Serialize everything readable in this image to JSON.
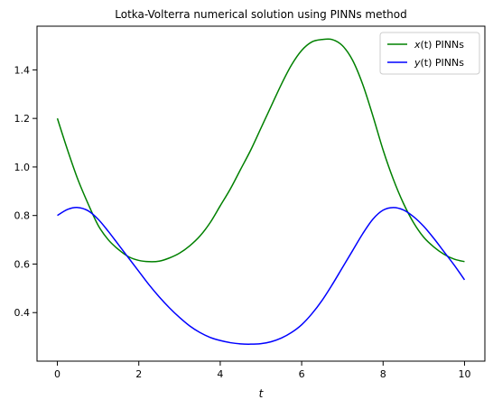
{
  "chart_data": {
    "type": "line",
    "title": "Lotka-Volterra numerical solution using PINNs method",
    "xlabel": "t",
    "ylabel": "",
    "xlim": [
      -0.5,
      10.5
    ],
    "ylim": [
      0.2,
      1.58
    ],
    "xticks": [
      0,
      2,
      4,
      6,
      8,
      10
    ],
    "yticks": [
      0.4,
      0.6,
      0.8,
      1.0,
      1.2,
      1.4
    ],
    "ytick_labels": [
      "0.4",
      "0.6",
      "0.8",
      "1.0",
      "1.2",
      "1.4"
    ],
    "grid": false,
    "legend_position": "top-right",
    "series": [
      {
        "name": "x(t) PINNs",
        "legend_var": "x",
        "legend_rest": "(t) PINNs",
        "color": "#008000",
        "x": [
          0,
          0.25,
          0.5,
          0.75,
          1.0,
          1.25,
          1.5,
          1.75,
          2.0,
          2.25,
          2.5,
          2.75,
          3.0,
          3.25,
          3.5,
          3.75,
          4.0,
          4.25,
          4.5,
          4.75,
          5.0,
          5.25,
          5.5,
          5.75,
          6.0,
          6.25,
          6.5,
          6.75,
          7.0,
          7.25,
          7.5,
          7.75,
          8.0,
          8.25,
          8.5,
          8.75,
          9.0,
          9.25,
          9.5,
          9.75,
          10.0
        ],
        "y": [
          1.2,
          1.07,
          0.95,
          0.85,
          0.76,
          0.7,
          0.66,
          0.63,
          0.615,
          0.61,
          0.612,
          0.625,
          0.645,
          0.675,
          0.715,
          0.77,
          0.84,
          0.91,
          0.99,
          1.07,
          1.16,
          1.25,
          1.34,
          1.42,
          1.48,
          1.515,
          1.525,
          1.525,
          1.5,
          1.44,
          1.34,
          1.21,
          1.07,
          0.95,
          0.85,
          0.77,
          0.71,
          0.67,
          0.64,
          0.62,
          0.61
        ]
      },
      {
        "name": "y(t) PINNs",
        "legend_var": "y",
        "legend_rest": "(t) PINNs",
        "color": "#0000ff",
        "x": [
          0,
          0.25,
          0.5,
          0.75,
          1.0,
          1.25,
          1.5,
          1.75,
          2.0,
          2.25,
          2.5,
          2.75,
          3.0,
          3.25,
          3.5,
          3.75,
          4.0,
          4.25,
          4.5,
          4.75,
          5.0,
          5.25,
          5.5,
          5.75,
          6.0,
          6.25,
          6.5,
          6.75,
          7.0,
          7.25,
          7.5,
          7.75,
          8.0,
          8.25,
          8.5,
          8.75,
          9.0,
          9.25,
          9.5,
          9.75,
          10.0
        ],
        "y": [
          0.8,
          0.825,
          0.833,
          0.82,
          0.785,
          0.735,
          0.68,
          0.625,
          0.57,
          0.515,
          0.465,
          0.42,
          0.38,
          0.345,
          0.318,
          0.298,
          0.285,
          0.276,
          0.271,
          0.27,
          0.272,
          0.28,
          0.295,
          0.318,
          0.35,
          0.395,
          0.45,
          0.515,
          0.585,
          0.655,
          0.725,
          0.785,
          0.822,
          0.833,
          0.823,
          0.795,
          0.755,
          0.705,
          0.65,
          0.595,
          0.535
        ]
      }
    ]
  }
}
